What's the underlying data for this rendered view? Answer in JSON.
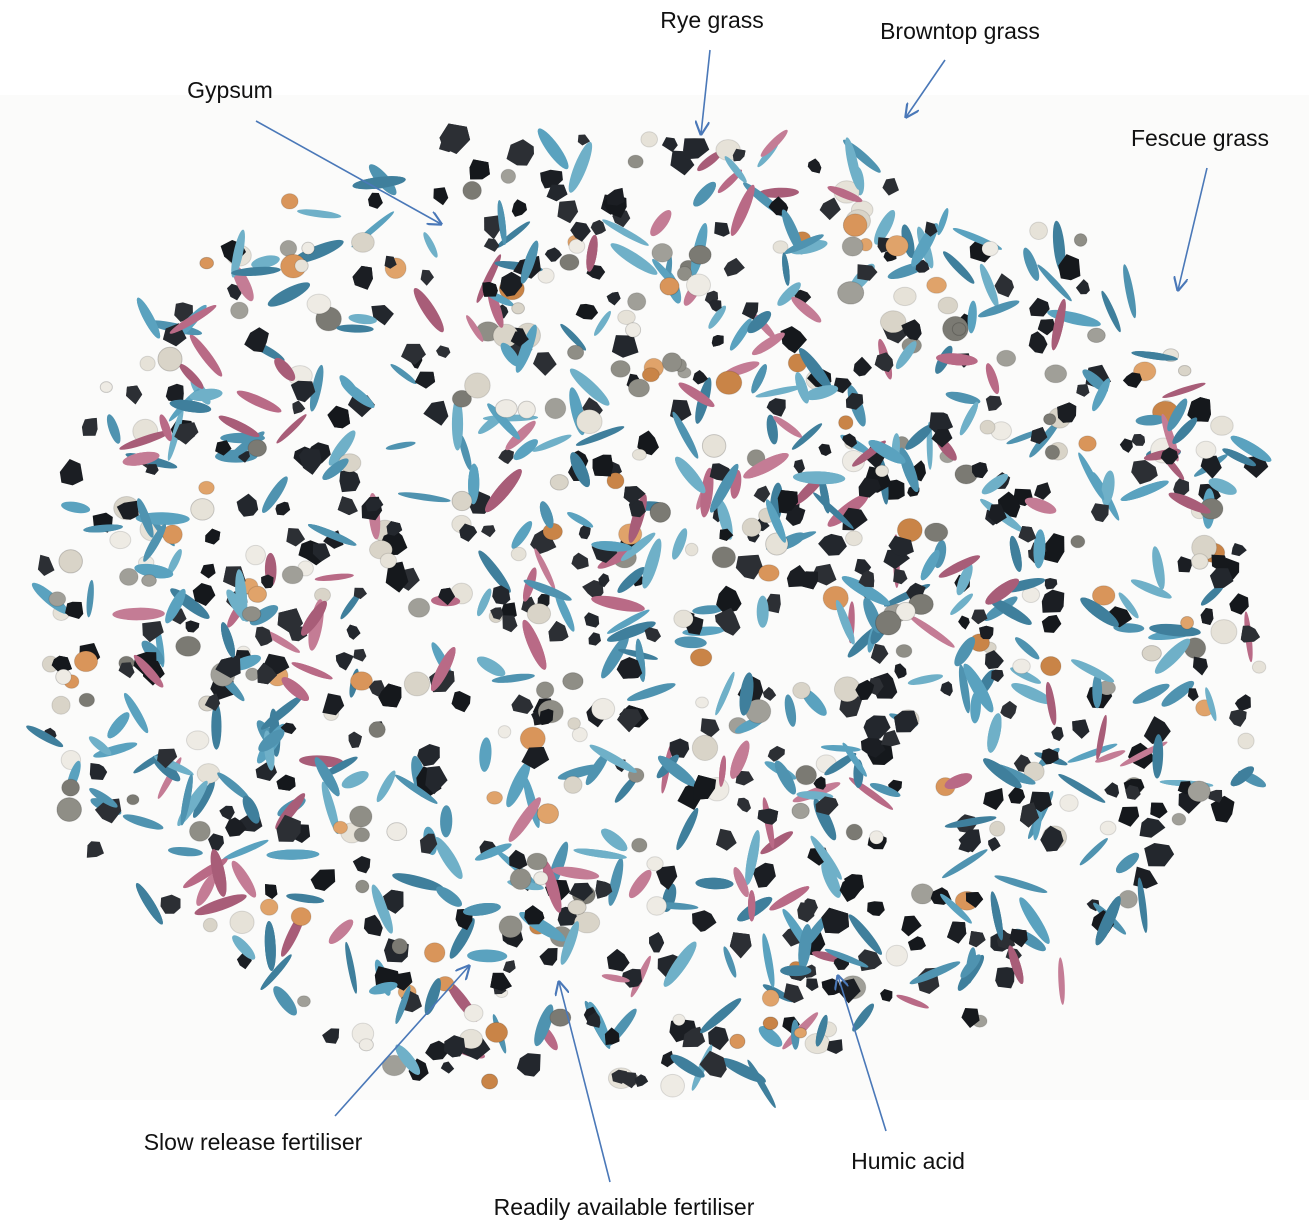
{
  "labels": {
    "rye_grass": "Rye grass",
    "browntop_grass": "Browntop grass",
    "gypsum": "Gypsum",
    "fescue_grass": "Fescue grass",
    "slow_release_fertiliser": "Slow release fertiliser",
    "readily_available_fertiliser": "Readily available fertiliser",
    "humic_acid": "Humic acid"
  }
}
